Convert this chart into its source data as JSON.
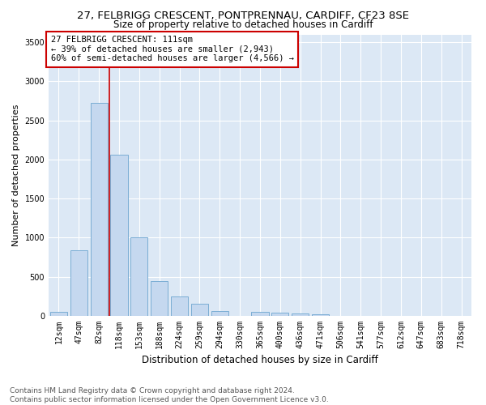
{
  "title_line1": "27, FELBRIGG CRESCENT, PONTPRENNAU, CARDIFF, CF23 8SE",
  "title_line2": "Size of property relative to detached houses in Cardiff",
  "xlabel": "Distribution of detached houses by size in Cardiff",
  "ylabel": "Number of detached properties",
  "categories": [
    "12sqm",
    "47sqm",
    "82sqm",
    "118sqm",
    "153sqm",
    "188sqm",
    "224sqm",
    "259sqm",
    "294sqm",
    "330sqm",
    "365sqm",
    "400sqm",
    "436sqm",
    "471sqm",
    "506sqm",
    "541sqm",
    "577sqm",
    "612sqm",
    "647sqm",
    "683sqm",
    "718sqm"
  ],
  "values": [
    55,
    840,
    2720,
    2060,
    1010,
    450,
    250,
    160,
    65,
    0,
    55,
    40,
    30,
    20,
    0,
    0,
    0,
    0,
    0,
    0,
    0
  ],
  "bar_color": "#c5d8ef",
  "bar_edge_color": "#7aadd4",
  "vline_color": "#cc0000",
  "vline_x": 2.5,
  "annotation_text": "27 FELBRIGG CRESCENT: 111sqm\n← 39% of detached houses are smaller (2,943)\n60% of semi-detached houses are larger (4,566) →",
  "annotation_box_color": "#ffffff",
  "annotation_box_edge": "#cc0000",
  "ylim": [
    0,
    3600
  ],
  "yticks": [
    0,
    500,
    1000,
    1500,
    2000,
    2500,
    3000,
    3500
  ],
  "fig_bg_color": "#ffffff",
  "plot_bg_color": "#dce8f5",
  "grid_color": "#ffffff",
  "footer_line1": "Contains HM Land Registry data © Crown copyright and database right 2024.",
  "footer_line2": "Contains public sector information licensed under the Open Government Licence v3.0.",
  "title1_fontsize": 9.5,
  "title2_fontsize": 8.5,
  "xlabel_fontsize": 8.5,
  "ylabel_fontsize": 8,
  "tick_fontsize": 7,
  "annotation_fontsize": 7.5,
  "footer_fontsize": 6.5
}
